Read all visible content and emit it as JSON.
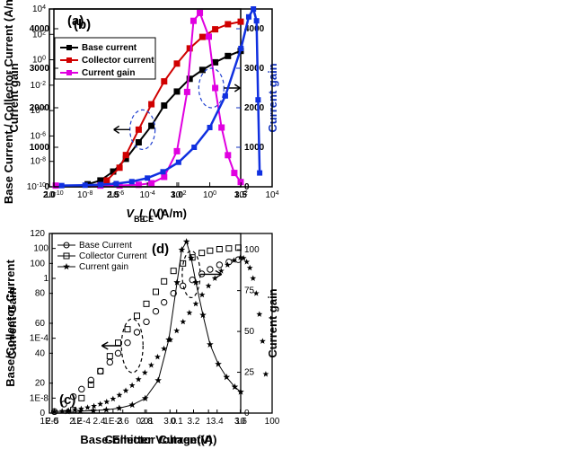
{
  "panel_a": {
    "label": "(a)",
    "x_title": "V_BE (V)",
    "y_left_title": "Base Current / Collector Current (A/m)",
    "y_right_title": "Current gain",
    "x_lim": [
      2.0,
      3.5
    ],
    "x_ticks": [
      2.0,
      2.5,
      3.0,
      3.5
    ],
    "y_left_log10_lim": [
      -10,
      4
    ],
    "y_left_ticks_log10": [
      -10,
      -8,
      -6,
      -4,
      -2,
      0,
      2,
      4
    ],
    "y_right_lim": [
      0,
      4500
    ],
    "y_right_ticks": [
      0,
      1000,
      2000,
      3000,
      4000
    ],
    "y_right_color": "#1030c0",
    "legend": [
      {
        "label": "Base current",
        "color": "#000000"
      },
      {
        "label": "Collector current",
        "color": "#d00000"
      },
      {
        "label": "Current gain",
        "color": "#e000e0"
      }
    ],
    "series": {
      "base": {
        "color": "#000000",
        "x": [
          2.3,
          2.4,
          2.5,
          2.6,
          2.7,
          2.8,
          2.9,
          3.0,
          3.1,
          3.2,
          3.3,
          3.4,
          3.5
        ],
        "y_log10": [
          -9.8,
          -9.5,
          -8.8,
          -7.8,
          -6.5,
          -5.2,
          -3.6,
          -2.5,
          -1.5,
          -0.8,
          -0.2,
          0.3,
          0.7
        ]
      },
      "collector": {
        "color": "#d00000",
        "x": [
          2.45,
          2.55,
          2.6,
          2.7,
          2.8,
          2.9,
          3.0,
          3.1,
          3.2,
          3.3,
          3.4,
          3.5
        ],
        "y_log10": [
          -9.5,
          -8.5,
          -7.5,
          -5.5,
          -3.5,
          -1.7,
          -0.3,
          0.9,
          1.8,
          2.4,
          2.8,
          3.0
        ]
      },
      "gain": {
        "color": "#e000e0",
        "x": [
          2.05,
          2.4,
          2.55,
          2.7,
          2.8,
          2.9,
          3.0,
          3.08,
          3.13,
          3.18,
          3.25,
          3.3,
          3.35,
          3.4,
          3.45,
          3.5
        ],
        "y": [
          30,
          30,
          35,
          50,
          90,
          250,
          900,
          2400,
          4200,
          4400,
          3800,
          2500,
          1500,
          800,
          350,
          120
        ]
      }
    }
  },
  "panel_b": {
    "label": "(b)",
    "x_title": "I_CE (A/m)",
    "y_title": "Current gain",
    "x_log10_lim": [
      -10,
      4
    ],
    "x_ticks_log10": [
      -10,
      -8,
      -6,
      -4,
      -2,
      0,
      2,
      4
    ],
    "y_lim": [
      0,
      4500
    ],
    "y_ticks": [
      0,
      1000,
      2000,
      3000,
      4000
    ],
    "series": {
      "gain": {
        "color": "#1030e0",
        "x_log10": [
          -9.5,
          -8,
          -7,
          -6,
          -5,
          -4,
          -3,
          -2,
          -1,
          0,
          1,
          2,
          2.5,
          2.8,
          3.0,
          3.1,
          3.2
        ],
        "y": [
          30,
          40,
          55,
          80,
          130,
          220,
          380,
          620,
          1000,
          1500,
          2300,
          3500,
          4300,
          4500,
          4200,
          2200,
          350
        ]
      }
    }
  },
  "panel_c": {
    "label": "(c)",
    "x_title": "Base-Emitter Voltage(V)",
    "y_left_title": "Base/Collector  Current",
    "y_right_title": "Current gain",
    "x_lim": [
      2.0,
      3.6
    ],
    "x_ticks": [
      2.0,
      2.2,
      2.4,
      2.6,
      2.8,
      3.0,
      3.2,
      3.4,
      3.6
    ],
    "y_left_log10_lim": [
      -9,
      3
    ],
    "y_left_ticks_log10": [
      -8,
      -4,
      0,
      2
    ],
    "y_left_tick_labels": [
      "1E-8",
      "1E-4",
      "1",
      "100"
    ],
    "y_right_lim": [
      0,
      110
    ],
    "y_right_ticks": [
      0,
      25,
      50,
      75,
      100
    ],
    "legend": [
      {
        "label": "Base Current",
        "marker": "circle"
      },
      {
        "label": "Collector Current",
        "marker": "square"
      },
      {
        "label": "Current gain",
        "marker": "star"
      }
    ],
    "series": {
      "base": {
        "marker": "circle",
        "x": [
          2.02,
          2.1,
          2.18,
          2.25,
          2.33,
          2.41,
          2.49,
          2.56,
          2.64,
          2.72,
          2.8,
          2.88,
          2.95,
          3.03,
          3.11,
          3.19,
          3.27,
          3.34,
          3.42,
          3.5,
          3.58
        ],
        "y_log10": [
          -8.9,
          -8.4,
          -7.9,
          -7.4,
          -6.8,
          -6.2,
          -5.6,
          -5.0,
          -4.3,
          -3.6,
          -2.9,
          -2.2,
          -1.6,
          -1.0,
          -0.5,
          -0.1,
          0.3,
          0.6,
          0.9,
          1.1,
          1.25
        ]
      },
      "collector": {
        "marker": "square",
        "x": [
          2.18,
          2.25,
          2.33,
          2.41,
          2.49,
          2.56,
          2.64,
          2.72,
          2.8,
          2.88,
          2.95,
          3.03,
          3.11,
          3.19,
          3.27,
          3.34,
          3.42,
          3.5,
          3.58
        ],
        "y_log10": [
          -8.8,
          -8.0,
          -7.1,
          -6.2,
          -5.2,
          -4.3,
          -3.4,
          -2.5,
          -1.7,
          -0.9,
          -0.2,
          0.5,
          1.0,
          1.4,
          1.7,
          1.85,
          1.95,
          2.0,
          2.05
        ]
      },
      "gain": {
        "marker": "star",
        "x": [
          2.02,
          2.13,
          2.24,
          2.35,
          2.46,
          2.57,
          2.68,
          2.79,
          2.9,
          2.99,
          3.06,
          3.1,
          3.14,
          3.18,
          3.22,
          3.28,
          3.34,
          3.41,
          3.48,
          3.55,
          3.6
        ],
        "y": [
          1,
          1,
          1.2,
          1.5,
          2,
          3,
          5,
          9,
          20,
          45,
          80,
          100,
          105,
          95,
          80,
          60,
          42,
          30,
          22,
          16,
          13
        ]
      }
    }
  },
  "panel_d": {
    "label": "(d)",
    "x_title": "Collector Current(A)",
    "y_title": "Current Gain",
    "x_log10_lim": [
      -5,
      2
    ],
    "x_ticks_log10": [
      -5,
      -4,
      -3,
      -2,
      -1,
      0,
      1,
      2
    ],
    "x_tick_labels": [
      "1E-5",
      "1E-4",
      "1E-3",
      "0.01",
      "0.1",
      "1",
      "10",
      "100"
    ],
    "y_lim": [
      0,
      120
    ],
    "y_ticks": [
      0,
      20,
      40,
      60,
      80,
      100,
      120
    ],
    "series": {
      "gain": {
        "marker": "star",
        "x_log10": [
          -4.85,
          -4.6,
          -4.4,
          -4.2,
          -4.0,
          -3.8,
          -3.6,
          -3.4,
          -3.2,
          -3.0,
          -2.8,
          -2.6,
          -2.4,
          -2.2,
          -2.0,
          -1.8,
          -1.6,
          -1.4,
          -1.2,
          -1.0,
          -0.8,
          -0.6,
          -0.4,
          -0.2,
          0.0,
          0.2,
          0.4,
          0.6,
          0.8,
          1.0,
          1.1,
          1.2,
          1.3,
          1.4,
          1.5,
          1.6,
          1.7,
          1.8
        ],
        "y": [
          1,
          1.3,
          1.7,
          2.2,
          2.9,
          3.7,
          4.7,
          6,
          7.5,
          9.5,
          12,
          15,
          18.5,
          22.5,
          27,
          32,
          37.5,
          43,
          49,
          55,
          61,
          67,
          73,
          79,
          85,
          90,
          95,
          99,
          102,
          104,
          103.5,
          101,
          97,
          90,
          80,
          66,
          48,
          26
        ]
      }
    }
  }
}
